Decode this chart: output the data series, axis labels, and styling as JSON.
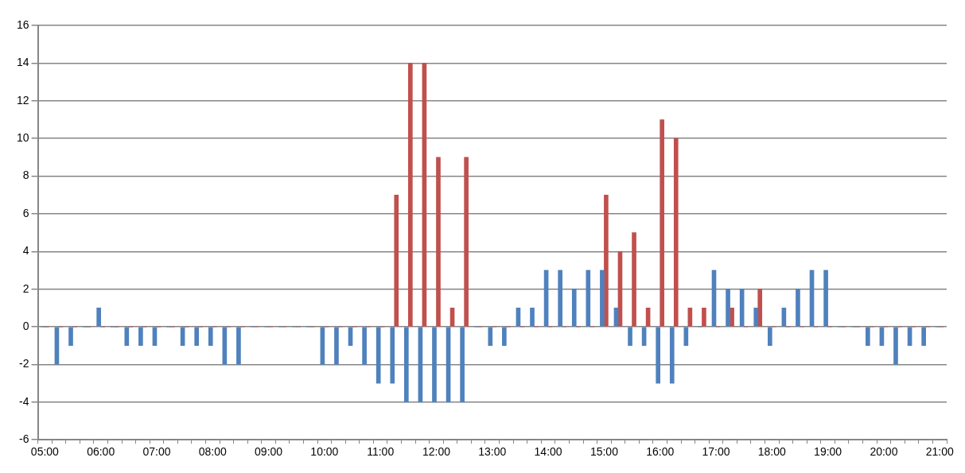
{
  "chart_data": {
    "type": "bar",
    "categories": [
      "05:00",
      null,
      null,
      null,
      "06:00",
      null,
      null,
      null,
      "07:00",
      null,
      null,
      null,
      "08:00",
      null,
      null,
      null,
      "09:00",
      null,
      null,
      null,
      "10:00",
      null,
      null,
      null,
      "11:00",
      null,
      null,
      null,
      "12:00",
      null,
      null,
      null,
      "13:00",
      null,
      null,
      null,
      "14:00",
      null,
      null,
      null,
      "15:00",
      null,
      null,
      null,
      "16:00",
      null,
      null,
      null,
      "17:00",
      null,
      null,
      null,
      "18:00",
      null,
      null,
      null,
      "19:00",
      null,
      null,
      null,
      "20:00",
      null,
      null,
      null,
      "21:00"
    ],
    "series": [
      {
        "color": "#4f81bd",
        "values": [
          0,
          -2,
          -1,
          0,
          1,
          0,
          -1,
          -1,
          -1,
          0,
          -1,
          -1,
          -1,
          -2,
          -2,
          0,
          0,
          0,
          0,
          0,
          -2,
          -2,
          -1,
          -2,
          -3,
          -3,
          -4,
          -4,
          -4,
          -4,
          -4,
          0,
          -1,
          -1,
          1,
          1,
          3,
          3,
          2,
          3,
          3,
          1,
          -1,
          -1,
          -3,
          -3,
          -1,
          0,
          3,
          2,
          2,
          1,
          -1,
          1,
          2,
          3,
          3,
          0,
          0,
          -1,
          -1,
          -2,
          -1,
          -1,
          0
        ]
      },
      {
        "color": "#c0504d",
        "values": [
          0,
          0,
          0,
          0,
          0,
          0,
          0,
          0,
          0,
          0,
          0,
          0,
          0,
          0,
          0,
          0,
          0,
          0,
          0,
          0,
          0,
          0,
          0,
          0,
          0,
          7,
          14,
          14,
          9,
          1,
          9,
          0,
          0,
          0,
          0,
          0,
          0,
          0,
          0,
          0,
          7,
          4,
          5,
          1,
          11,
          10,
          1,
          1,
          0,
          1,
          0,
          2,
          0,
          0,
          0,
          0,
          0,
          0,
          0,
          0,
          0,
          0,
          0,
          0,
          0
        ]
      }
    ],
    "ylim": [
      -6,
      16
    ],
    "yticks": [
      -6,
      -4,
      -2,
      0,
      2,
      4,
      6,
      8,
      10,
      12,
      14,
      16
    ],
    "grid": "y",
    "legend": false
  }
}
